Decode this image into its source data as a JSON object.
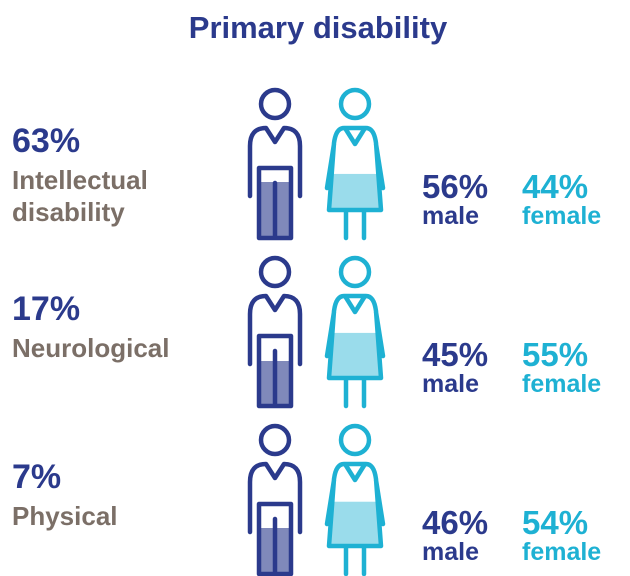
{
  "chart_data": {
    "type": "pictograph",
    "title": "Primary disability",
    "categories": [
      "Intellectual disability",
      "Neurological",
      "Physical"
    ],
    "values": [
      63,
      17,
      7
    ],
    "value_labels": [
      "63%",
      "17%",
      "7%"
    ],
    "color": "#2b3a8c",
    "label_color": "#7b6f67",
    "series": [
      {
        "name": "male",
        "color": "#2b3a8c",
        "values": [
          56,
          45,
          46
        ],
        "value_labels": [
          "56%",
          "45%",
          "46%"
        ]
      },
      {
        "name": "female",
        "color": "#1eb1d3",
        "values": [
          44,
          55,
          54
        ],
        "value_labels": [
          "44%",
          "55%",
          "54%"
        ]
      }
    ]
  }
}
